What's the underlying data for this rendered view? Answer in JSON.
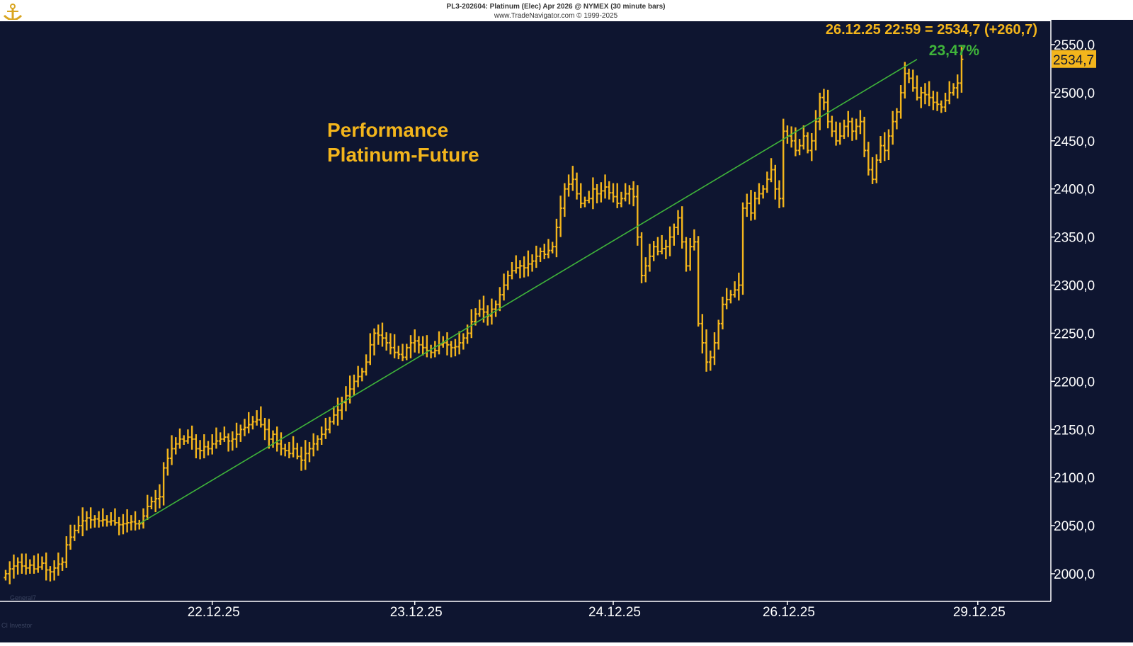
{
  "header": {
    "line1": "PL3-202604:  Platinum (Elec) Apr 2026 @ NYMEX  (30 minute bars)",
    "line2": "www.TradeNavigator.com © 1999-2025"
  },
  "colors": {
    "background": "#0e1530",
    "price_bars": "#f3b51c",
    "trend_line": "#3fb43a",
    "performance_text": "#3fb43a",
    "label_text": "#f3b51c",
    "axis": "#ffffff",
    "last_price_box": "#f3b51c"
  },
  "annotations": {
    "title_line1": "Performance",
    "title_line2": "Platinum-Future",
    "last_quote": "26.12.25 22:59 = 2534,7 (+260,7)",
    "performance_pct": "23,47%",
    "last_price_tag": "2534,7",
    "corner_label": "General7",
    "footer": "CI Investor"
  },
  "chart_data": {
    "type": "bar",
    "title": "Performance Platinum-Future",
    "ohlc": true,
    "ylim": [
      1970,
      2565
    ],
    "xlim": [
      0,
      240
    ],
    "y_ticks": [
      2000,
      2050,
      2100,
      2150,
      2200,
      2250,
      2300,
      2350,
      2400,
      2450,
      2500,
      2550
    ],
    "y_tick_labels": [
      "2000,0",
      "2050,0",
      "2100,0",
      "2150,0",
      "2200,0",
      "2250,0",
      "2300,0",
      "2350,0",
      "2400,0",
      "2450,0",
      "2500,0",
      "2550,0"
    ],
    "x_ticks": [
      {
        "index": 51,
        "label": "22.12.25"
      },
      {
        "index": 101,
        "label": "23.12.25"
      },
      {
        "index": 150,
        "label": "24.12.25"
      },
      {
        "index": 193,
        "label": "26.12.25"
      },
      {
        "index": 240,
        "label": "29.12.25"
      }
    ],
    "trend_line": {
      "from": [
        33,
        2052
      ],
      "to": [
        225,
        2534.7
      ]
    },
    "performance": "23,47%",
    "last_price": 2534.7,
    "change": 260.7,
    "closes": [
      2000,
      2005,
      2008,
      2012,
      2008,
      2006,
      2009,
      2005,
      2007,
      2011,
      2004,
      2002,
      2006,
      2010,
      2012,
      2030,
      2038,
      2045,
      2050,
      2055,
      2058,
      2056,
      2057,
      2055,
      2056,
      2054,
      2055,
      2053,
      2051,
      2052,
      2053,
      2054,
      2052,
      2052,
      2060,
      2070,
      2075,
      2078,
      2080,
      2110,
      2120,
      2130,
      2135,
      2140,
      2138,
      2142,
      2140,
      2130,
      2128,
      2132,
      2130,
      2135,
      2138,
      2140,
      2142,
      2138,
      2140,
      2145,
      2150,
      2152,
      2155,
      2158,
      2160,
      2155,
      2150,
      2140,
      2145,
      2135,
      2130,
      2128,
      2125,
      2130,
      2122,
      2118,
      2125,
      2130,
      2135,
      2140,
      2145,
      2150,
      2158,
      2165,
      2170,
      2178,
      2185,
      2192,
      2200,
      2205,
      2210,
      2220,
      2238,
      2250,
      2248,
      2245,
      2240,
      2235,
      2230,
      2228,
      2225,
      2235,
      2240,
      2242,
      2238,
      2235,
      2232,
      2230,
      2232,
      2238,
      2240,
      2238,
      2235,
      2236,
      2240,
      2245,
      2250,
      2262,
      2270,
      2275,
      2272,
      2268,
      2275,
      2280,
      2290,
      2300,
      2310,
      2315,
      2318,
      2320,
      2318,
      2322,
      2325,
      2330,
      2335,
      2332,
      2336,
      2340,
      2360,
      2380,
      2400,
      2405,
      2410,
      2395,
      2385,
      2388,
      2390,
      2400,
      2395,
      2398,
      2402,
      2396,
      2392,
      2385,
      2390,
      2395,
      2400,
      2392,
      2350,
      2310,
      2320,
      2330,
      2340,
      2335,
      2338,
      2340,
      2350,
      2360,
      2370,
      2345,
      2320,
      2340,
      2345,
      2260,
      2240,
      2220,
      2225,
      2240,
      2260,
      2280,
      2285,
      2290,
      2295,
      2300,
      2380,
      2385,
      2375,
      2390,
      2395,
      2400,
      2410,
      2420,
      2400,
      2390,
      2460,
      2455,
      2450,
      2440,
      2445,
      2455,
      2440,
      2450,
      2470,
      2495,
      2490,
      2470,
      2460,
      2450,
      2455,
      2465,
      2470,
      2460,
      2465,
      2470,
      2440,
      2420,
      2410,
      2430,
      2445,
      2440,
      2455,
      2470,
      2480,
      2500,
      2520,
      2515,
      2505,
      2495,
      2500,
      2498,
      2495,
      2490,
      2488,
      2485,
      2492,
      2500,
      2505,
      2510,
      2534.7
    ]
  }
}
